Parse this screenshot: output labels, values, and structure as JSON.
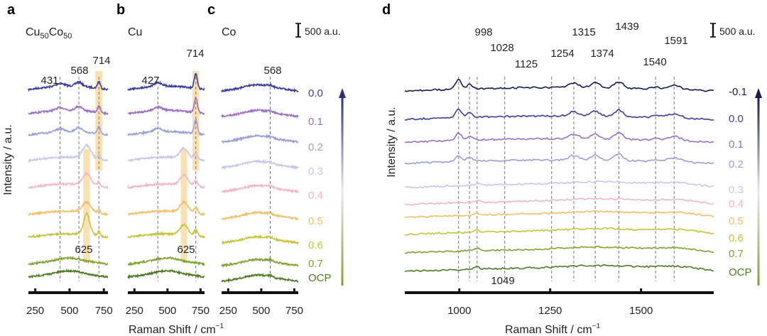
{
  "chart_data": [
    {
      "panel": "a",
      "type": "line",
      "title": "Cu50Co50",
      "title_base": "Cu",
      "title_sub1": "50",
      "title_mid": "Co",
      "title_sub2": "50",
      "xlabel": "Raman Shift / cm",
      "xlabel_sup": "−1",
      "ylabel": "Intensity / a.u.",
      "xlim": [
        200,
        780
      ],
      "xticks": [
        250,
        500,
        750
      ],
      "peak_labels": [
        "431",
        "568",
        "714",
        "625"
      ],
      "dashed_lines": [
        431,
        568,
        714
      ],
      "highlight_bands": [
        [
          688,
          740
        ],
        [
          600,
          648
        ]
      ],
      "series_names": [
        "0.0",
        "0.1",
        "0.2",
        "0.3",
        "0.4",
        "0.5",
        "0.6",
        "0.7",
        "OCP"
      ]
    },
    {
      "panel": "b",
      "type": "line",
      "title": "Cu",
      "xlabel": "Raman Shift / cm",
      "xlim": [
        200,
        780
      ],
      "xticks": [
        250,
        500,
        750
      ],
      "peak_labels": [
        "427",
        "714",
        "625"
      ],
      "dashed_lines": [
        427,
        714
      ],
      "highlight_bands": [
        [
          688,
          740
        ],
        [
          600,
          648
        ]
      ],
      "series_names": [
        "0.0",
        "0.1",
        "0.2",
        "0.3",
        "0.4",
        "0.5",
        "0.6",
        "0.7",
        "OCP"
      ]
    },
    {
      "panel": "c",
      "type": "line",
      "title": "Co",
      "xlabel": "Raman Shift / cm",
      "xlim": [
        200,
        780
      ],
      "xticks": [
        250,
        500,
        750
      ],
      "peak_labels": [
        "568"
      ],
      "dashed_lines": [
        568
      ],
      "scale_bar_label": "500 a.u.",
      "series_names": [
        "0.0",
        "0.1",
        "0.2",
        "0.3",
        "0.4",
        "0.5",
        "0.6",
        "0.7",
        "OCP"
      ]
    },
    {
      "panel": "d",
      "type": "line",
      "xlabel": "Raman Shift / cm",
      "ylabel": "Intensity / a.u.",
      "xlim": [
        850,
        1700
      ],
      "xticks": [
        1000,
        1250,
        1500
      ],
      "peak_labels": [
        "998",
        "1028",
        "1125",
        "1254",
        "1315",
        "1374",
        "1439",
        "1540",
        "1591",
        "1049"
      ],
      "dashed_lines": [
        998,
        1028,
        1049,
        1125,
        1254,
        1315,
        1374,
        1439,
        1540,
        1591
      ],
      "scale_bar_label": "500 a.u.",
      "series_names": [
        "-0.1",
        "0.0",
        "0.1",
        "0.2",
        "0.3",
        "0.4",
        "0.5",
        "0.6",
        "0.7",
        "OCP"
      ]
    }
  ],
  "panel_letters": [
    "a",
    "b",
    "c",
    "d"
  ],
  "legend_abc": {
    "labels": [
      "0.0",
      "0.1",
      "0.2",
      "0.3",
      "0.4",
      "0.5",
      "0.6",
      "0.7",
      "OCP"
    ],
    "colors": [
      "#3a3f9c",
      "#9a6fc4",
      "#9b9fd8",
      "#c6c8ea",
      "#f2b7c4",
      "#f0c06a",
      "#c5c53a",
      "#7fa330",
      "#4e7a24"
    ]
  },
  "legend_d": {
    "labels": [
      "-0.1",
      "0.0",
      "0.1",
      "0.2",
      "0.3",
      "0.4",
      "0.5",
      "0.6",
      "0.7",
      "OCP"
    ],
    "colors": [
      "#151a52",
      "#3a3f9c",
      "#9a6fc4",
      "#9b9fd8",
      "#c6c8ea",
      "#f2b7c4",
      "#f0c06a",
      "#c5c53a",
      "#7fa330",
      "#4e7a24"
    ]
  }
}
